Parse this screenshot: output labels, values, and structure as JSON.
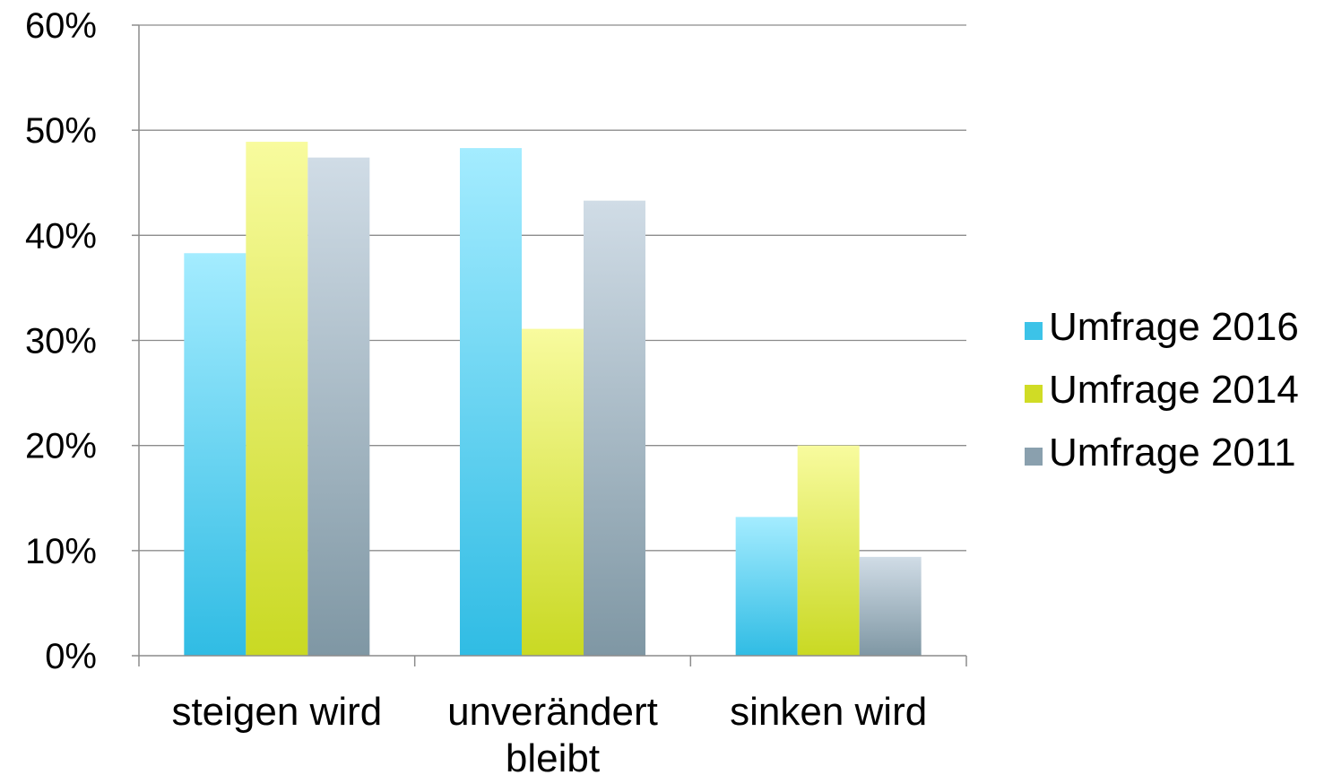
{
  "chart_data": {
    "type": "bar",
    "title": "",
    "xlabel": "",
    "ylabel": "",
    "categories": [
      [
        "steigen wird"
      ],
      [
        "unverändert",
        "bleibt"
      ],
      [
        "sinken wird"
      ]
    ],
    "series": [
      {
        "name": "Umfrage 2016",
        "values": [
          38.3,
          48.3,
          13.2
        ]
      },
      {
        "name": "Umfrage 2014",
        "values": [
          48.9,
          31.1,
          20.0
        ]
      },
      {
        "name": "Umfrage 2011",
        "values": [
          47.4,
          43.3,
          9.4
        ]
      }
    ],
    "ylim": [
      0,
      60
    ],
    "yticks": [
      0,
      10,
      20,
      30,
      40,
      50,
      60
    ],
    "ytick_labels": [
      "0%",
      "10%",
      "20%",
      "30%",
      "40%",
      "50%",
      "60%"
    ],
    "grid": true,
    "legend_position": "right",
    "colors": {
      "Umfrage 2016": {
        "top": "#a4ecff",
        "bottom": "#30bce4",
        "legend": "#3cc3e8"
      },
      "Umfrage 2014": {
        "top": "#f8fb9e",
        "bottom": "#c9d923",
        "legend": "#d0dc25"
      },
      "Umfrage 2011": {
        "top": "#d0dce6",
        "bottom": "#7f97a4",
        "legend": "#8aa0ae"
      }
    },
    "gridline_color": "#8c8c8c"
  }
}
